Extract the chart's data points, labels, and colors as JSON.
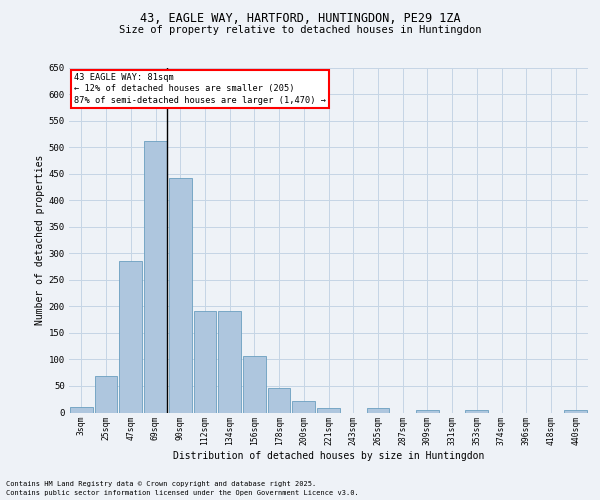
{
  "title1": "43, EAGLE WAY, HARTFORD, HUNTINGDON, PE29 1ZA",
  "title2": "Size of property relative to detached houses in Huntingdon",
  "xlabel": "Distribution of detached houses by size in Huntingdon",
  "ylabel": "Number of detached properties",
  "categories": [
    "3sqm",
    "25sqm",
    "47sqm",
    "69sqm",
    "90sqm",
    "112sqm",
    "134sqm",
    "156sqm",
    "178sqm",
    "200sqm",
    "221sqm",
    "243sqm",
    "265sqm",
    "287sqm",
    "309sqm",
    "331sqm",
    "353sqm",
    "374sqm",
    "396sqm",
    "418sqm",
    "440sqm"
  ],
  "values": [
    10,
    68,
    285,
    512,
    441,
    192,
    192,
    107,
    46,
    21,
    8,
    0,
    8,
    0,
    5,
    0,
    4,
    0,
    0,
    0,
    5
  ],
  "bar_color": "#aec6de",
  "bar_edge_color": "#6a9fc0",
  "annotation_title": "43 EAGLE WAY: 81sqm",
  "annotation_line1": "← 12% of detached houses are smaller (205)",
  "annotation_line2": "87% of semi-detached houses are larger (1,470) →",
  "vline_bar_index": 3,
  "ylim": [
    0,
    650
  ],
  "yticks": [
    0,
    50,
    100,
    150,
    200,
    250,
    300,
    350,
    400,
    450,
    500,
    550,
    600,
    650
  ],
  "footer1": "Contains HM Land Registry data © Crown copyright and database right 2025.",
  "footer2": "Contains public sector information licensed under the Open Government Licence v3.0.",
  "bg_color": "#eef2f7",
  "grid_color": "#c5d5e5"
}
